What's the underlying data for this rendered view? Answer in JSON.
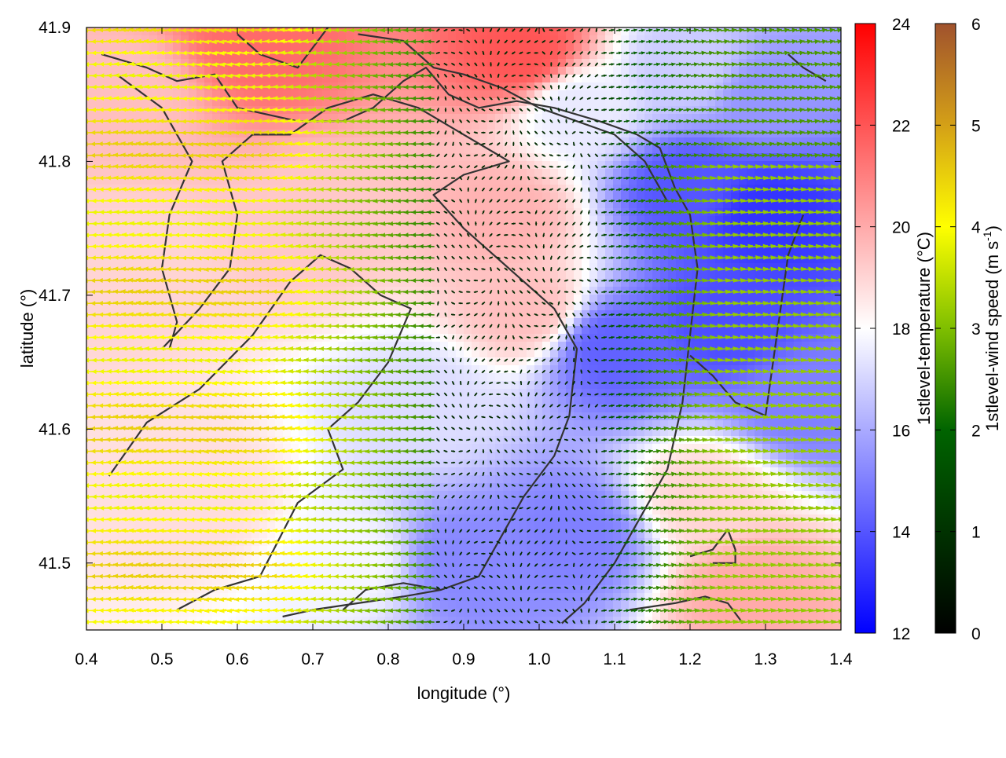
{
  "chart_data": {
    "type": "heatmap",
    "xlabel": "longitude (°)",
    "ylabel": "latitude (°)",
    "xlim": [
      0.4,
      1.4
    ],
    "ylim": [
      41.45,
      41.9
    ],
    "x_ticks": [
      0.4,
      0.5,
      0.6,
      0.7,
      0.8,
      0.9,
      1.0,
      1.1,
      1.2,
      1.3,
      1.4
    ],
    "y_ticks": [
      41.5,
      41.6,
      41.7,
      41.8,
      41.9
    ],
    "x_tick_labels": [
      "0.4",
      "0.5",
      "0.6",
      "0.7",
      "0.8",
      "0.9",
      "1.0",
      "1.1",
      "1.2",
      "1.3",
      "1.4"
    ],
    "y_tick_labels": [
      "41.5",
      "41.6",
      "41.7",
      "41.8",
      "41.9"
    ],
    "temperature_colorbar": {
      "label": "1stlevel-temperature (°C)",
      "range": [
        12,
        24
      ],
      "ticks": [
        12,
        14,
        16,
        18,
        20,
        22,
        24
      ],
      "tick_labels": [
        "12",
        "14",
        "16",
        "18",
        "20",
        "22",
        "24"
      ],
      "colors": [
        "#0000ff",
        "#ffffff",
        "#ff0000"
      ]
    },
    "wind_colorbar": {
      "label_main": "1stlevel-wind speed (m s",
      "label_sup": "-1",
      "label_end": ")",
      "range": [
        0,
        6
      ],
      "ticks": [
        0,
        1,
        2,
        3,
        4,
        5,
        6
      ],
      "tick_labels": [
        "0",
        "1",
        "2",
        "3",
        "4",
        "5",
        "6"
      ],
      "colors": [
        "#000000",
        "#006400",
        "#7fbf00",
        "#ffff00",
        "#d4a017",
        "#a0522d"
      ]
    },
    "temperature_field": [
      {
        "lon": 0.45,
        "lat": 41.85,
        "t": 19.5
      },
      {
        "lon": 0.63,
        "lat": 41.89,
        "t": 21.5
      },
      {
        "lon": 0.98,
        "lat": 41.88,
        "t": 22.0
      },
      {
        "lon": 0.45,
        "lat": 41.72,
        "t": 19.0
      },
      {
        "lon": 0.55,
        "lat": 41.55,
        "t": 18.8
      },
      {
        "lon": 0.7,
        "lat": 41.75,
        "t": 19.3
      },
      {
        "lon": 0.95,
        "lat": 41.76,
        "t": 19.8
      },
      {
        "lon": 0.98,
        "lat": 41.69,
        "t": 19.5
      },
      {
        "lon": 0.85,
        "lat": 41.62,
        "t": 17.2
      },
      {
        "lon": 0.9,
        "lat": 41.5,
        "t": 15.2
      },
      {
        "lon": 1.05,
        "lat": 41.52,
        "t": 15.0
      },
      {
        "lon": 1.2,
        "lat": 41.78,
        "t": 14.0
      },
      {
        "lon": 1.3,
        "lat": 41.76,
        "t": 13.2
      },
      {
        "lon": 1.25,
        "lat": 41.68,
        "t": 13.8
      },
      {
        "lon": 1.1,
        "lat": 41.66,
        "t": 14.3
      },
      {
        "lon": 1.22,
        "lat": 41.55,
        "t": 19.0
      },
      {
        "lon": 1.28,
        "lat": 41.48,
        "t": 20.0
      },
      {
        "lon": 1.35,
        "lat": 41.62,
        "t": 15.0
      },
      {
        "lon": 1.3,
        "lat": 41.85,
        "t": 15.5
      },
      {
        "lon": 1.2,
        "lat": 41.87,
        "t": 16.8
      },
      {
        "lon": 1.05,
        "lat": 41.84,
        "t": 17.5
      },
      {
        "lon": 0.75,
        "lat": 41.5,
        "t": 17.8
      }
    ],
    "wind_field_description": "arrows plotted on a regular lon/lat grid, colored by wind speed; strong (3-4.5 m/s) westward-pointing winds over the west, near-calm in the centre, 1.5-3 m/s eastward winds in the east"
  }
}
